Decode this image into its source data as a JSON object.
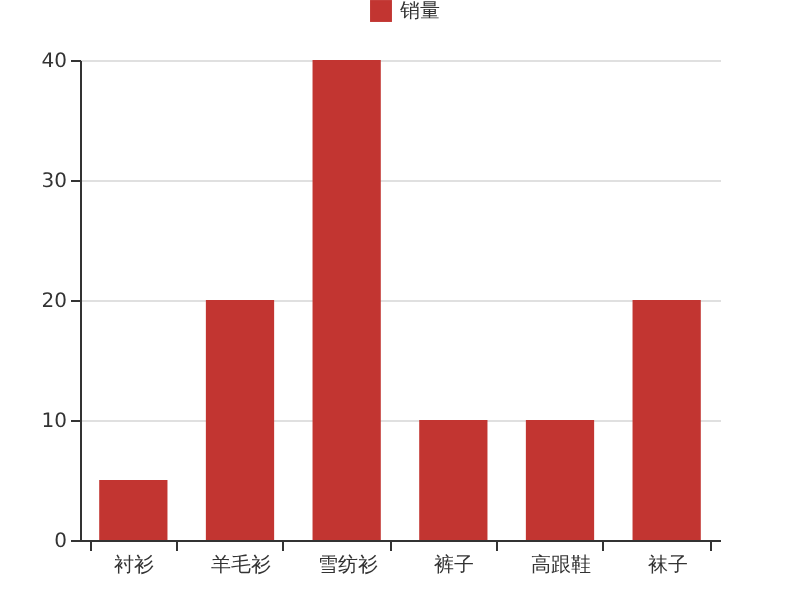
{
  "chart_data": {
    "type": "bar",
    "categories": [
      "衬衫",
      "羊毛衫",
      "雪纺衫",
      "裤子",
      "高跟鞋",
      "袜子"
    ],
    "series": [
      {
        "name": "销量",
        "color": "#c23531",
        "values": [
          5,
          20,
          40,
          10,
          10,
          20
        ]
      }
    ],
    "ylim": [
      0,
      40
    ],
    "yticks": [
      0,
      10,
      20,
      30,
      40
    ],
    "grid": "y",
    "legend": "top"
  }
}
